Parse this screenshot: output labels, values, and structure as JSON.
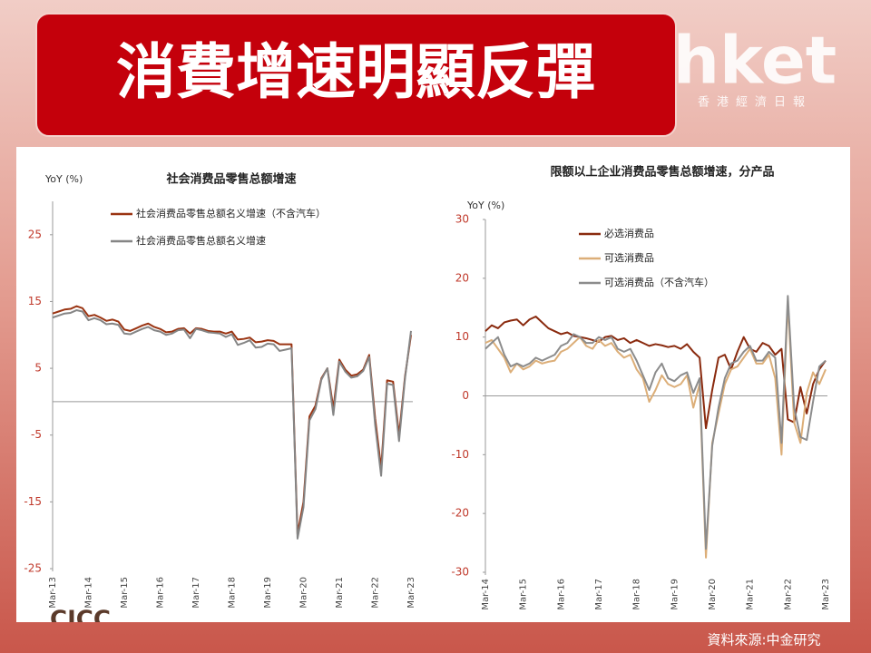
{
  "header": {
    "title": "消費增速明顯反彈"
  },
  "logo": {
    "name": "hket",
    "subtitle": "香港經濟日報"
  },
  "source": "資料來源:中金研究",
  "watermark": "CICC",
  "chart_data": [
    {
      "type": "line",
      "title": "社会消费品零售总额增速",
      "y_label": "YoY (%)",
      "categories": [
        "Mar-13",
        null,
        null,
        null,
        null,
        null,
        "Mar-14",
        null,
        null,
        null,
        null,
        null,
        "Mar-15",
        null,
        null,
        null,
        null,
        null,
        "Mar-16",
        null,
        null,
        null,
        null,
        null,
        "Mar-17",
        null,
        null,
        null,
        null,
        null,
        "Mar-18",
        null,
        null,
        null,
        null,
        null,
        "Mar-19",
        null,
        null,
        null,
        null,
        null,
        "Mar-20",
        null,
        null,
        null,
        null,
        null,
        "Mar-21",
        null,
        null,
        null,
        null,
        null,
        "Mar-22",
        null,
        null,
        null,
        null,
        null,
        "Mar-23"
      ],
      "series": [
        {
          "name": "社会消费品零售总额名义增速（不含汽车）",
          "color": "#9a3412",
          "values": [
            13.2,
            13.5,
            13.8,
            13.9,
            14.3,
            14.0,
            12.8,
            13.0,
            12.6,
            12.1,
            12.3,
            12.0,
            10.8,
            10.6,
            11.0,
            11.4,
            11.7,
            11.2,
            10.9,
            10.4,
            10.5,
            10.9,
            11.0,
            10.2,
            11.0,
            10.9,
            10.6,
            10.5,
            10.5,
            10.2,
            10.5,
            9.3,
            9.4,
            9.6,
            8.9,
            9.0,
            9.2,
            9.1,
            8.6,
            8.6,
            8.6,
            -19.8,
            -15.0,
            -2.2,
            -0.6,
            3.5,
            5.0,
            -1.0,
            6.3,
            4.8,
            3.9,
            4.1,
            4.8,
            7.0,
            -2.5,
            -10.0,
            3.2,
            3.0,
            -5.0,
            3.8,
            10.0
          ]
        },
        {
          "name": "社会消费品零售总额名义增速",
          "color": "#858585",
          "values": [
            12.6,
            12.9,
            13.2,
            13.3,
            13.7,
            13.5,
            12.2,
            12.5,
            12.2,
            11.6,
            11.7,
            11.5,
            10.2,
            10.1,
            10.5,
            10.9,
            11.2,
            10.7,
            10.5,
            10.0,
            10.2,
            10.7,
            10.8,
            9.5,
            10.9,
            10.7,
            10.4,
            10.3,
            10.2,
            9.7,
            10.1,
            8.5,
            8.8,
            9.2,
            8.1,
            8.2,
            8.7,
            8.6,
            7.6,
            7.8,
            8.0,
            -20.5,
            -15.8,
            -2.8,
            -1.1,
            3.3,
            5.0,
            -2.0,
            6.0,
            4.5,
            3.6,
            3.8,
            4.6,
            6.7,
            -3.5,
            -11.1,
            2.7,
            2.5,
            -5.9,
            3.5,
            10.6
          ]
        }
      ],
      "ylim": [
        -25,
        30
      ],
      "yticks": [
        -25,
        -15,
        -5,
        5,
        15,
        25
      ]
    },
    {
      "type": "line",
      "title": "限额以上企业消费品零售总额增速，分产品",
      "y_label": "YoY (%)",
      "categories": [
        "Mar-14",
        null,
        null,
        null,
        null,
        null,
        "Mar-15",
        null,
        null,
        null,
        null,
        null,
        "Mar-16",
        null,
        null,
        null,
        null,
        null,
        "Mar-17",
        null,
        null,
        null,
        null,
        null,
        "Mar-18",
        null,
        null,
        null,
        null,
        null,
        "Mar-19",
        null,
        null,
        null,
        null,
        null,
        "Mar-20",
        null,
        null,
        null,
        null,
        null,
        "Mar-21",
        null,
        null,
        null,
        null,
        null,
        "Mar-22",
        null,
        null,
        null,
        null,
        null,
        "Mar-23"
      ],
      "series": [
        {
          "name": "必选消费品",
          "color": "#8a2a0e",
          "values": [
            11.0,
            12.0,
            11.5,
            12.5,
            12.8,
            13.0,
            12.0,
            13.0,
            13.5,
            12.5,
            11.5,
            11.0,
            10.5,
            10.8,
            10.2,
            10.0,
            9.8,
            9.5,
            9.2,
            10.0,
            10.2,
            9.5,
            9.8,
            9.0,
            9.5,
            9.0,
            8.5,
            8.8,
            8.6,
            8.3,
            8.5,
            8.0,
            8.8,
            7.5,
            6.5,
            -5.5,
            1.0,
            6.5,
            7.0,
            4.5,
            7.5,
            10.0,
            8.0,
            7.5,
            9.0,
            8.5,
            7.0,
            8.0,
            -4.0,
            -4.5,
            1.5,
            -3.0,
            2.0,
            4.5,
            6.0
          ]
        },
        {
          "name": "可选消费品",
          "color": "#dcae78",
          "values": [
            9.0,
            9.5,
            8.0,
            6.5,
            4.0,
            5.5,
            4.5,
            5.0,
            6.0,
            5.5,
            5.8,
            6.0,
            7.5,
            8.0,
            9.0,
            10.0,
            8.5,
            8.0,
            9.5,
            8.5,
            9.0,
            7.5,
            6.5,
            7.0,
            4.5,
            3.0,
            -1.0,
            1.0,
            3.5,
            2.0,
            1.5,
            2.0,
            3.5,
            -2.0,
            2.0,
            -27.5,
            -8.0,
            -3.0,
            2.0,
            4.5,
            5.0,
            6.5,
            8.0,
            5.5,
            5.5,
            7.0,
            3.0,
            -10.0,
            16.0,
            -4.5,
            -8.0,
            0.5,
            4.0,
            2.0,
            4.5
          ]
        },
        {
          "name": "可选消费品（不含汽车）",
          "color": "#8c8c8c",
          "values": [
            8.0,
            9.0,
            10.0,
            7.0,
            5.0,
            5.5,
            5.0,
            5.5,
            6.5,
            6.0,
            6.5,
            7.0,
            8.5,
            9.0,
            10.5,
            10.0,
            9.0,
            9.0,
            10.0,
            9.5,
            10.0,
            8.0,
            7.5,
            8.0,
            6.0,
            3.5,
            1.0,
            4.0,
            5.5,
            3.0,
            2.5,
            3.5,
            4.0,
            0.5,
            3.0,
            -26.0,
            -8.5,
            -2.0,
            3.0,
            5.5,
            6.0,
            7.5,
            8.5,
            6.0,
            6.0,
            7.5,
            6.5,
            -8.0,
            17.0,
            -2.0,
            -7.0,
            -7.5,
            -1.0,
            5.0,
            6.0
          ]
        }
      ],
      "ylim": [
        -30,
        30
      ],
      "yticks": [
        -30,
        -20,
        -10,
        0,
        10,
        20,
        30
      ]
    }
  ]
}
